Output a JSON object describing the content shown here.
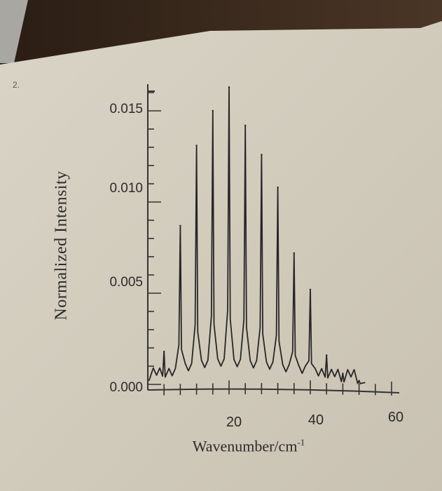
{
  "problem_number": "2.",
  "chart_data": {
    "type": "line",
    "xlabel": "Wavenumber/cm",
    "xlabel_superscript": "-1",
    "ylabel": "Normalized Intensity",
    "xlim": [
      0,
      60
    ],
    "ylim": [
      0,
      0.017
    ],
    "y_ticks": [
      "0.000",
      "0.005",
      "0.010",
      "0.015"
    ],
    "x_ticks": [
      "20",
      "40",
      "60"
    ],
    "series": [
      {
        "peaks": [
          {
            "x": 4.0,
            "y": 0.0018
          },
          {
            "x": 8.0,
            "y": 0.0087
          },
          {
            "x": 12.0,
            "y": 0.0131
          },
          {
            "x": 16.0,
            "y": 0.015
          },
          {
            "x": 20.0,
            "y": 0.0163
          },
          {
            "x": 24.0,
            "y": 0.0142
          },
          {
            "x": 28.0,
            "y": 0.0126
          },
          {
            "x": 32.0,
            "y": 0.0108
          },
          {
            "x": 36.0,
            "y": 0.0072
          },
          {
            "x": 40.0,
            "y": 0.0052
          },
          {
            "x": 44.0,
            "y": 0.0016
          },
          {
            "x": 48.0,
            "y": 0.0006
          },
          {
            "x": 52.0,
            "y": 0.0002
          }
        ]
      }
    ]
  }
}
